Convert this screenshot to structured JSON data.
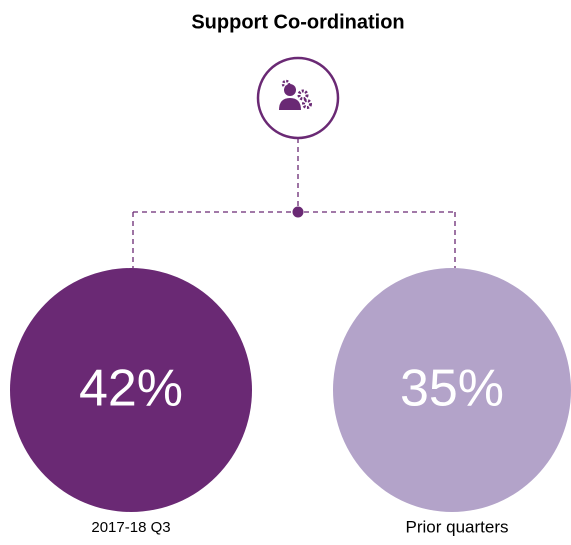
{
  "header": {
    "title": "Support Co-ordination"
  },
  "nodes": [
    {
      "value_text": "42%",
      "label": "2017-18 Q3",
      "color": "#6a2974"
    },
    {
      "value_text": "35%",
      "label": "Prior quarters",
      "color": "#b3a3c9"
    }
  ]
}
